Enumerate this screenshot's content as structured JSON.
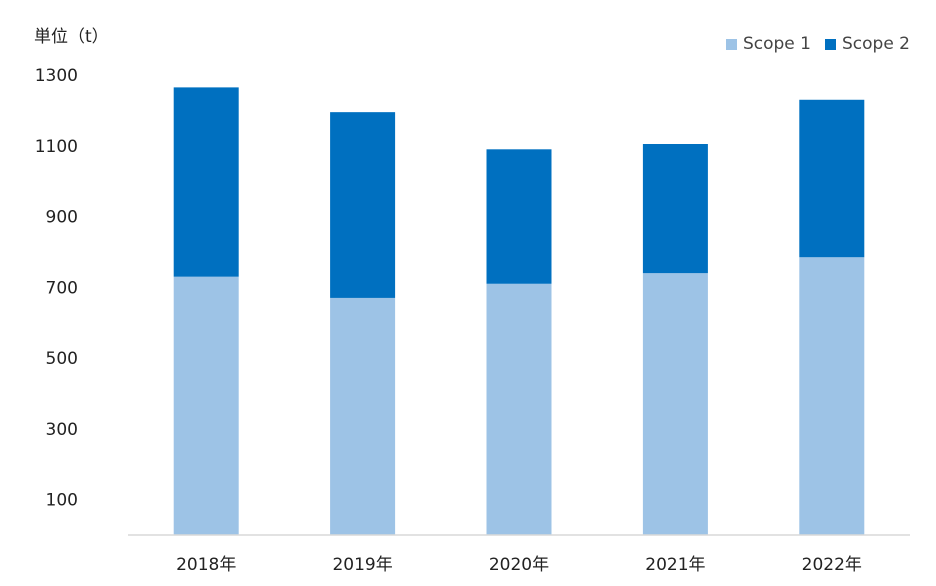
{
  "chart_data": {
    "type": "bar",
    "stacked": true,
    "ylabel": "単位（t）",
    "categories": [
      "2018年",
      "2019年",
      "2020年",
      "2021年",
      "2022年"
    ],
    "series": [
      {
        "name": "Scope 1",
        "color": "#9dc3e6",
        "values": [
          730,
          670,
          710,
          740,
          785
        ]
      },
      {
        "name": "Scope 2",
        "color": "#0070c0",
        "values": [
          535,
          525,
          380,
          365,
          445
        ]
      }
    ],
    "yticks": [
      100,
      300,
      500,
      700,
      900,
      1100,
      1300
    ],
    "ylim": [
      0,
      1300
    ],
    "grid": false,
    "legend_position": "top-right"
  }
}
